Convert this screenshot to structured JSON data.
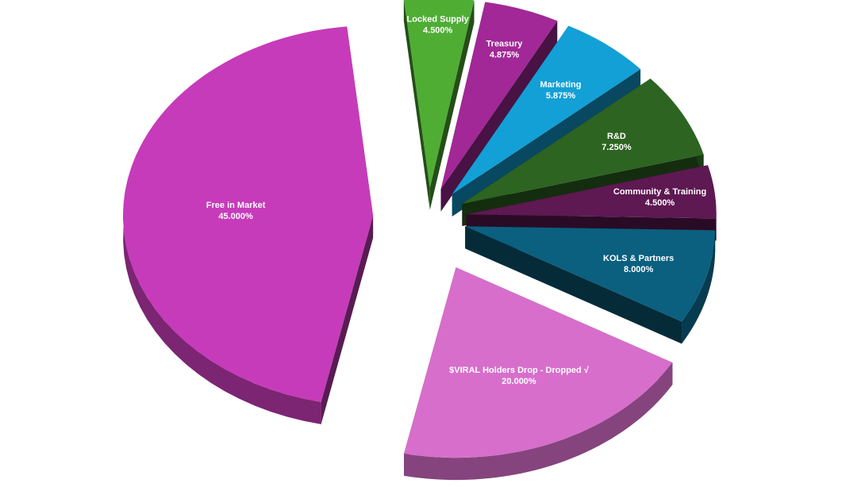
{
  "chart_data": {
    "type": "pie",
    "title": "",
    "legend": "none",
    "slices": [
      {
        "label": "Free in Market",
        "value": 45.0,
        "display": "45.000%",
        "color": "#c63bb9"
      },
      {
        "label": "$VIRAL Holders Drop - Dropped √",
        "value": 20.0,
        "display": "20.000%",
        "color": "#d76ecb"
      },
      {
        "label": "KOLS & Partners",
        "value": 8.0,
        "display": "8.000%",
        "color": "#0b5f7f"
      },
      {
        "label": "Community & Training",
        "value": 4.5,
        "display": "4.500%",
        "color": "#5e1852"
      },
      {
        "label": "R&D",
        "value": 7.25,
        "display": "7.250%",
        "color": "#2d6421"
      },
      {
        "label": "Marketing",
        "value": 5.875,
        "display": "5.875%",
        "color": "#12a0d6"
      },
      {
        "label": "Treasury",
        "value": 4.875,
        "display": "4.875%",
        "color": "#a12896"
      },
      {
        "label": "Locked Supply",
        "value": 4.5,
        "display": "4.500%",
        "color": "#4fad34"
      }
    ]
  }
}
